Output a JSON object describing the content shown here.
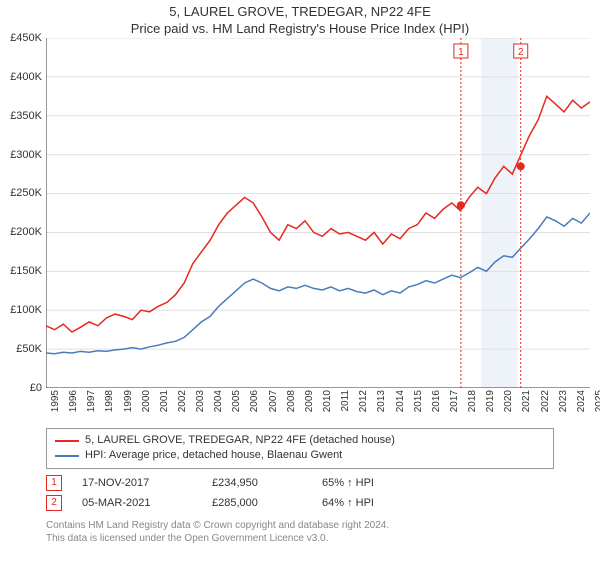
{
  "title": "5, LAUREL GROVE, TREDEGAR, NP22 4FE",
  "subtitle": "Price paid vs. HM Land Registry's House Price Index (HPI)",
  "chart": {
    "type": "line",
    "background_color": "#ffffff",
    "grid_color": "#e0e0e0",
    "axis_color": "#333333",
    "ylim": [
      0,
      450000
    ],
    "ytick_step": 50000,
    "ytick_labels": [
      "£0",
      "£50K",
      "£100K",
      "£150K",
      "£200K",
      "£250K",
      "£300K",
      "£350K",
      "£400K",
      "£450K"
    ],
    "x_years": [
      1995,
      1996,
      1997,
      1998,
      1999,
      2000,
      2001,
      2002,
      2003,
      2004,
      2005,
      2006,
      2007,
      2008,
      2009,
      2010,
      2011,
      2012,
      2013,
      2014,
      2015,
      2016,
      2017,
      2018,
      2019,
      2020,
      2021,
      2022,
      2023,
      2024,
      2025
    ],
    "line_width": 1.5,
    "label_fontsize": 11,
    "series": [
      {
        "id": "property",
        "label": "5, LAUREL GROVE, TREDEGAR, NP22 4FE (detached house)",
        "color": "#e6281e",
        "values": [
          80000,
          75000,
          82000,
          72000,
          78000,
          85000,
          80000,
          90000,
          95000,
          92000,
          88000,
          100000,
          98000,
          105000,
          110000,
          120000,
          135000,
          160000,
          175000,
          190000,
          210000,
          225000,
          235000,
          245000,
          238000,
          220000,
          200000,
          190000,
          210000,
          205000,
          215000,
          200000,
          195000,
          205000,
          198000,
          200000,
          195000,
          190000,
          200000,
          185000,
          198000,
          192000,
          205000,
          210000,
          225000,
          218000,
          230000,
          238000,
          228000,
          245000,
          258000,
          250000,
          270000,
          285000,
          275000,
          300000,
          325000,
          345000,
          375000,
          365000,
          355000,
          370000,
          360000,
          368000
        ]
      },
      {
        "id": "hpi",
        "label": "HPI: Average price, detached house, Blaenau Gwent",
        "color": "#4a7bbd",
        "values": [
          45000,
          44000,
          46000,
          45000,
          47000,
          46000,
          48000,
          47000,
          49000,
          50000,
          52000,
          50000,
          53000,
          55000,
          58000,
          60000,
          65000,
          75000,
          85000,
          92000,
          105000,
          115000,
          125000,
          135000,
          140000,
          135000,
          128000,
          125000,
          130000,
          128000,
          132000,
          128000,
          126000,
          130000,
          125000,
          128000,
          124000,
          122000,
          126000,
          120000,
          125000,
          122000,
          130000,
          133000,
          138000,
          135000,
          140000,
          145000,
          142000,
          148000,
          155000,
          150000,
          162000,
          170000,
          168000,
          180000,
          192000,
          205000,
          220000,
          215000,
          208000,
          218000,
          212000,
          225000
        ]
      }
    ],
    "sale_markers": [
      {
        "index": 1,
        "year": 2017.88,
        "value": 234950,
        "color": "#e6281e"
      },
      {
        "index": 2,
        "year": 2021.18,
        "value": 285000,
        "color": "#e6281e"
      }
    ],
    "highlight_band": {
      "from_year": 2019,
      "to_year": 2021,
      "fill": "#eef3fa"
    },
    "marker_line_color": "#e6281e",
    "marker_dot_color": "#e6281e"
  },
  "legend": [
    {
      "color": "#e6281e",
      "label": "5, LAUREL GROVE, TREDEGAR, NP22 4FE (detached house)"
    },
    {
      "color": "#4a7bbd",
      "label": "HPI: Average price, detached house, Blaenau Gwent"
    }
  ],
  "sales": [
    {
      "marker": "1",
      "marker_color": "#e6281e",
      "date": "17-NOV-2017",
      "price": "£234,950",
      "delta": "65% ↑ HPI"
    },
    {
      "marker": "2",
      "marker_color": "#e6281e",
      "date": "05-MAR-2021",
      "price": "£285,000",
      "delta": "64% ↑ HPI"
    }
  ],
  "footer_line1": "Contains HM Land Registry data © Crown copyright and database right 2024.",
  "footer_line2": "This data is licensed under the Open Government Licence v3.0."
}
